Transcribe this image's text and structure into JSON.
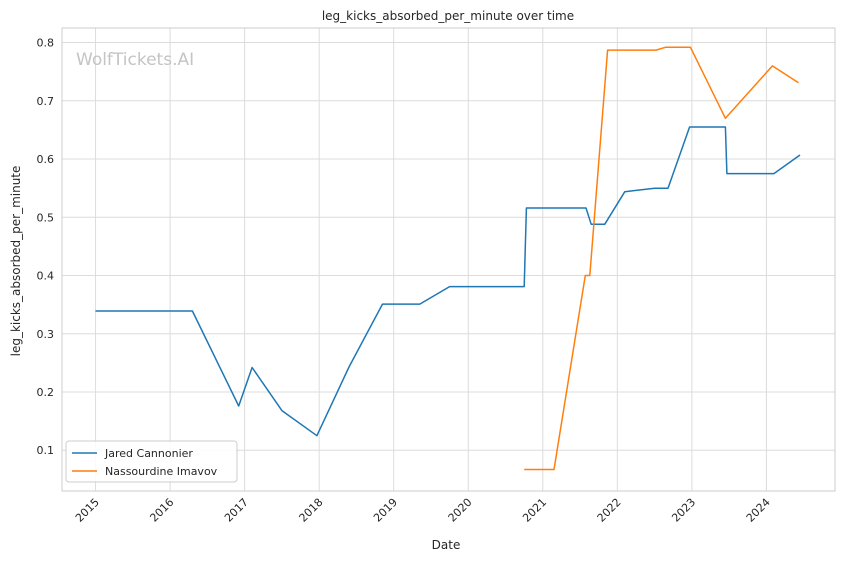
{
  "watermark": "WolfTickets.AI",
  "chart_data": {
    "type": "line",
    "title": "leg_kicks_absorbed_per_minute over time",
    "xlabel": "Date",
    "ylabel": "leg_kicks_absorbed_per_minute",
    "xlim": [
      2014.55,
      2024.92
    ],
    "ylim": [
      0.03,
      0.825
    ],
    "x_ticks": [
      2015,
      2016,
      2017,
      2018,
      2019,
      2020,
      2021,
      2022,
      2023,
      2024
    ],
    "y_ticks": [
      0.1,
      0.2,
      0.3,
      0.4,
      0.5,
      0.6,
      0.7,
      0.8
    ],
    "grid": true,
    "legend_position": "lower-left",
    "series": [
      {
        "name": "Jared Cannonier",
        "color": "#1f77b4",
        "points": [
          [
            2015.0,
            0.339
          ],
          [
            2016.3,
            0.339
          ],
          [
            2016.92,
            0.176
          ],
          [
            2017.1,
            0.242
          ],
          [
            2017.5,
            0.168
          ],
          [
            2017.97,
            0.125
          ],
          [
            2018.4,
            0.243
          ],
          [
            2018.85,
            0.351
          ],
          [
            2019.35,
            0.351
          ],
          [
            2019.75,
            0.381
          ],
          [
            2020.75,
            0.381
          ],
          [
            2020.78,
            0.516
          ],
          [
            2021.58,
            0.516
          ],
          [
            2021.65,
            0.488
          ],
          [
            2021.83,
            0.488
          ],
          [
            2022.1,
            0.544
          ],
          [
            2022.5,
            0.55
          ],
          [
            2022.68,
            0.55
          ],
          [
            2022.97,
            0.655
          ],
          [
            2023.45,
            0.655
          ],
          [
            2023.47,
            0.575
          ],
          [
            2024.1,
            0.575
          ],
          [
            2024.45,
            0.607
          ]
        ]
      },
      {
        "name": "Nassourdine Imavov",
        "color": "#ff7f0e",
        "points": [
          [
            2020.75,
            0.067
          ],
          [
            2021.15,
            0.067
          ],
          [
            2021.57,
            0.4
          ],
          [
            2021.63,
            0.4
          ],
          [
            2021.87,
            0.787
          ],
          [
            2022.52,
            0.787
          ],
          [
            2022.65,
            0.792
          ],
          [
            2022.98,
            0.792
          ],
          [
            2023.45,
            0.67
          ],
          [
            2024.08,
            0.76
          ],
          [
            2024.43,
            0.731
          ]
        ]
      }
    ]
  }
}
